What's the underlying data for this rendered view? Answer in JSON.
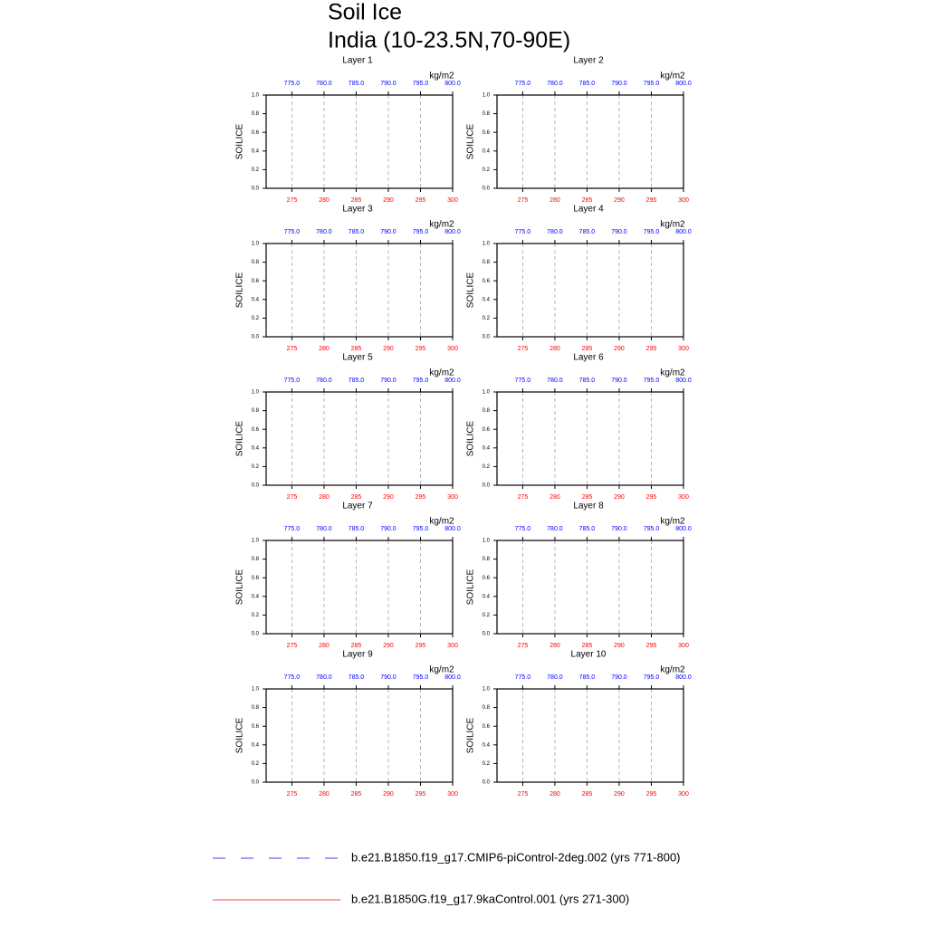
{
  "title": "Soil Ice",
  "subtitle": "India (10-23.5N,70-90E)",
  "legend": [
    {
      "name": "b.e21.B1850.f19_g17.CMIP6-piControl-2deg.002 (yrs 771-800)",
      "color": "#0000ff",
      "dash": true
    },
    {
      "name": "b.e21.B1850G.f19_g17.9kaControl.001 (yrs 271-300)",
      "color": "#ff0000",
      "dash": false
    }
  ],
  "chart_data": [
    {
      "type": "line",
      "title": "Layer 1",
      "ylabel": "SOILICE",
      "x2label": "kg/m2",
      "xlim": [
        271,
        300
      ],
      "xticks": [
        275,
        280,
        285,
        290,
        295,
        300
      ],
      "x2lim": [
        771,
        800
      ],
      "x2ticks": [
        {
          "value": 775,
          "label": "775.0"
        },
        {
          "value": 780,
          "label": "780.0"
        },
        {
          "value": 785,
          "label": "785.0"
        },
        {
          "value": 790,
          "label": "790.0"
        },
        {
          "value": 795,
          "label": "795.0"
        },
        {
          "value": 800,
          "label": "800.0"
        }
      ],
      "ylim": [
        0,
        1
      ],
      "yticks": [
        {
          "value": 0,
          "label": "0.0"
        },
        {
          "value": 0.2,
          "label": "0.2"
        },
        {
          "value": 0.4,
          "label": "0.4"
        },
        {
          "value": 0.6,
          "label": "0.6"
        },
        {
          "value": 0.8,
          "label": "0.8"
        },
        {
          "value": 1,
          "label": "1.0"
        }
      ],
      "grid": true,
      "xtick_color": "#ff0000",
      "x2tick_color": "#0000ff"
    },
    {
      "type": "line",
      "title": "Layer 2",
      "ylabel": "SOILICE",
      "x2label": "kg/m2",
      "xlim": [
        271,
        300
      ],
      "xticks": [
        275,
        280,
        285,
        290,
        295,
        300
      ],
      "x2lim": [
        771,
        800
      ],
      "x2ticks": [
        {
          "value": 775,
          "label": "775.0"
        },
        {
          "value": 780,
          "label": "780.0"
        },
        {
          "value": 785,
          "label": "785.0"
        },
        {
          "value": 790,
          "label": "790.0"
        },
        {
          "value": 795,
          "label": "795.0"
        },
        {
          "value": 800,
          "label": "800.0"
        }
      ],
      "ylim": [
        0,
        1
      ],
      "yticks": [
        {
          "value": 0,
          "label": "0.0"
        },
        {
          "value": 0.2,
          "label": "0.2"
        },
        {
          "value": 0.4,
          "label": "0.4"
        },
        {
          "value": 0.6,
          "label": "0.6"
        },
        {
          "value": 0.8,
          "label": "0.8"
        },
        {
          "value": 1,
          "label": "1.0"
        }
      ],
      "grid": true,
      "xtick_color": "#ff0000",
      "x2tick_color": "#0000ff"
    },
    {
      "type": "line",
      "title": "Layer 3",
      "ylabel": "SOILICE",
      "x2label": "kg/m2",
      "xlim": [
        271,
        300
      ],
      "xticks": [
        275,
        280,
        285,
        290,
        295,
        300
      ],
      "x2lim": [
        771,
        800
      ],
      "x2ticks": [
        {
          "value": 775,
          "label": "775.0"
        },
        {
          "value": 780,
          "label": "780.0"
        },
        {
          "value": 785,
          "label": "785.0"
        },
        {
          "value": 790,
          "label": "790.0"
        },
        {
          "value": 795,
          "label": "795.0"
        },
        {
          "value": 800,
          "label": "800.0"
        }
      ],
      "ylim": [
        0,
        1
      ],
      "yticks": [
        {
          "value": 0,
          "label": "0.0"
        },
        {
          "value": 0.2,
          "label": "0.2"
        },
        {
          "value": 0.4,
          "label": "0.4"
        },
        {
          "value": 0.6,
          "label": "0.6"
        },
        {
          "value": 0.8,
          "label": "0.8"
        },
        {
          "value": 1,
          "label": "1.0"
        }
      ],
      "grid": true,
      "xtick_color": "#ff0000",
      "x2tick_color": "#0000ff"
    },
    {
      "type": "line",
      "title": "Layer 4",
      "ylabel": "SOILICE",
      "x2label": "kg/m2",
      "xlim": [
        271,
        300
      ],
      "xticks": [
        275,
        280,
        285,
        290,
        295,
        300
      ],
      "x2lim": [
        771,
        800
      ],
      "x2ticks": [
        {
          "value": 775,
          "label": "775.0"
        },
        {
          "value": 780,
          "label": "780.0"
        },
        {
          "value": 785,
          "label": "785.0"
        },
        {
          "value": 790,
          "label": "790.0"
        },
        {
          "value": 795,
          "label": "795.0"
        },
        {
          "value": 800,
          "label": "800.0"
        }
      ],
      "ylim": [
        0,
        1
      ],
      "yticks": [
        {
          "value": 0,
          "label": "0.0"
        },
        {
          "value": 0.2,
          "label": "0.2"
        },
        {
          "value": 0.4,
          "label": "0.4"
        },
        {
          "value": 0.6,
          "label": "0.6"
        },
        {
          "value": 0.8,
          "label": "0.8"
        },
        {
          "value": 1,
          "label": "1.0"
        }
      ],
      "grid": true,
      "xtick_color": "#ff0000",
      "x2tick_color": "#0000ff"
    },
    {
      "type": "line",
      "title": "Layer 5",
      "ylabel": "SOILICE",
      "x2label": "kg/m2",
      "xlim": [
        271,
        300
      ],
      "xticks": [
        275,
        280,
        285,
        290,
        295,
        300
      ],
      "x2lim": [
        771,
        800
      ],
      "x2ticks": [
        {
          "value": 775,
          "label": "775.0"
        },
        {
          "value": 780,
          "label": "780.0"
        },
        {
          "value": 785,
          "label": "785.0"
        },
        {
          "value": 790,
          "label": "790.0"
        },
        {
          "value": 795,
          "label": "795.0"
        },
        {
          "value": 800,
          "label": "800.0"
        }
      ],
      "ylim": [
        0,
        1
      ],
      "yticks": [
        {
          "value": 0,
          "label": "0.0"
        },
        {
          "value": 0.2,
          "label": "0.2"
        },
        {
          "value": 0.4,
          "label": "0.4"
        },
        {
          "value": 0.6,
          "label": "0.6"
        },
        {
          "value": 0.8,
          "label": "0.8"
        },
        {
          "value": 1,
          "label": "1.0"
        }
      ],
      "grid": true,
      "xtick_color": "#ff0000",
      "x2tick_color": "#0000ff"
    },
    {
      "type": "line",
      "title": "Layer 6",
      "ylabel": "SOILICE",
      "x2label": "kg/m2",
      "xlim": [
        271,
        300
      ],
      "xticks": [
        275,
        280,
        285,
        290,
        295,
        300
      ],
      "x2lim": [
        771,
        800
      ],
      "x2ticks": [
        {
          "value": 775,
          "label": "775.0"
        },
        {
          "value": 780,
          "label": "780.0"
        },
        {
          "value": 785,
          "label": "785.0"
        },
        {
          "value": 790,
          "label": "790.0"
        },
        {
          "value": 795,
          "label": "795.0"
        },
        {
          "value": 800,
          "label": "800.0"
        }
      ],
      "ylim": [
        0,
        1
      ],
      "yticks": [
        {
          "value": 0,
          "label": "0.0"
        },
        {
          "value": 0.2,
          "label": "0.2"
        },
        {
          "value": 0.4,
          "label": "0.4"
        },
        {
          "value": 0.6,
          "label": "0.6"
        },
        {
          "value": 0.8,
          "label": "0.8"
        },
        {
          "value": 1,
          "label": "1.0"
        }
      ],
      "grid": true,
      "xtick_color": "#ff0000",
      "x2tick_color": "#0000ff"
    },
    {
      "type": "line",
      "title": "Layer 7",
      "ylabel": "SOILICE",
      "x2label": "kg/m2",
      "xlim": [
        271,
        300
      ],
      "xticks": [
        275,
        280,
        285,
        290,
        295,
        300
      ],
      "x2lim": [
        771,
        800
      ],
      "x2ticks": [
        {
          "value": 775,
          "label": "775.0"
        },
        {
          "value": 780,
          "label": "780.0"
        },
        {
          "value": 785,
          "label": "785.0"
        },
        {
          "value": 790,
          "label": "790.0"
        },
        {
          "value": 795,
          "label": "795.0"
        },
        {
          "value": 800,
          "label": "800.0"
        }
      ],
      "ylim": [
        0,
        1
      ],
      "yticks": [
        {
          "value": 0,
          "label": "0.0"
        },
        {
          "value": 0.2,
          "label": "0.2"
        },
        {
          "value": 0.4,
          "label": "0.4"
        },
        {
          "value": 0.6,
          "label": "0.6"
        },
        {
          "value": 0.8,
          "label": "0.8"
        },
        {
          "value": 1,
          "label": "1.0"
        }
      ],
      "grid": true,
      "xtick_color": "#ff0000",
      "x2tick_color": "#0000ff"
    },
    {
      "type": "line",
      "title": "Layer 8",
      "ylabel": "SOILICE",
      "x2label": "kg/m2",
      "xlim": [
        271,
        300
      ],
      "xticks": [
        275,
        280,
        285,
        290,
        295,
        300
      ],
      "x2lim": [
        771,
        800
      ],
      "x2ticks": [
        {
          "value": 775,
          "label": "775.0"
        },
        {
          "value": 780,
          "label": "780.0"
        },
        {
          "value": 785,
          "label": "785.0"
        },
        {
          "value": 790,
          "label": "790.0"
        },
        {
          "value": 795,
          "label": "795.0"
        },
        {
          "value": 800,
          "label": "800.0"
        }
      ],
      "ylim": [
        0,
        1
      ],
      "yticks": [
        {
          "value": 0,
          "label": "0.0"
        },
        {
          "value": 0.2,
          "label": "0.2"
        },
        {
          "value": 0.4,
          "label": "0.4"
        },
        {
          "value": 0.6,
          "label": "0.6"
        },
        {
          "value": 0.8,
          "label": "0.8"
        },
        {
          "value": 1,
          "label": "1.0"
        }
      ],
      "grid": true,
      "xtick_color": "#ff0000",
      "x2tick_color": "#0000ff"
    },
    {
      "type": "line",
      "title": "Layer 9",
      "ylabel": "SOILICE",
      "x2label": "kg/m2",
      "xlim": [
        271,
        300
      ],
      "xticks": [
        275,
        280,
        285,
        290,
        295,
        300
      ],
      "x2lim": [
        771,
        800
      ],
      "x2ticks": [
        {
          "value": 775,
          "label": "775.0"
        },
        {
          "value": 780,
          "label": "780.0"
        },
        {
          "value": 785,
          "label": "785.0"
        },
        {
          "value": 790,
          "label": "790.0"
        },
        {
          "value": 795,
          "label": "795.0"
        },
        {
          "value": 800,
          "label": "800.0"
        }
      ],
      "ylim": [
        0,
        1
      ],
      "yticks": [
        {
          "value": 0,
          "label": "0.0"
        },
        {
          "value": 0.2,
          "label": "0.2"
        },
        {
          "value": 0.4,
          "label": "0.4"
        },
        {
          "value": 0.6,
          "label": "0.6"
        },
        {
          "value": 0.8,
          "label": "0.8"
        },
        {
          "value": 1,
          "label": "1.0"
        }
      ],
      "grid": true,
      "xtick_color": "#ff0000",
      "x2tick_color": "#0000ff"
    },
    {
      "type": "line",
      "title": "Layer 10",
      "ylabel": "SOILICE",
      "x2label": "kg/m2",
      "xlim": [
        271,
        300
      ],
      "xticks": [
        275,
        280,
        285,
        290,
        295,
        300
      ],
      "x2lim": [
        771,
        800
      ],
      "x2ticks": [
        {
          "value": 775,
          "label": "775.0"
        },
        {
          "value": 780,
          "label": "780.0"
        },
        {
          "value": 785,
          "label": "785.0"
        },
        {
          "value": 790,
          "label": "790.0"
        },
        {
          "value": 795,
          "label": "795.0"
        },
        {
          "value": 800,
          "label": "800.0"
        }
      ],
      "ylim": [
        0,
        1
      ],
      "yticks": [
        {
          "value": 0,
          "label": "0.0"
        },
        {
          "value": 0.2,
          "label": "0.2"
        },
        {
          "value": 0.4,
          "label": "0.4"
        },
        {
          "value": 0.6,
          "label": "0.6"
        },
        {
          "value": 0.8,
          "label": "0.8"
        },
        {
          "value": 1,
          "label": "1.0"
        }
      ],
      "grid": true,
      "xtick_color": "#ff0000",
      "x2tick_color": "#0000ff"
    }
  ]
}
